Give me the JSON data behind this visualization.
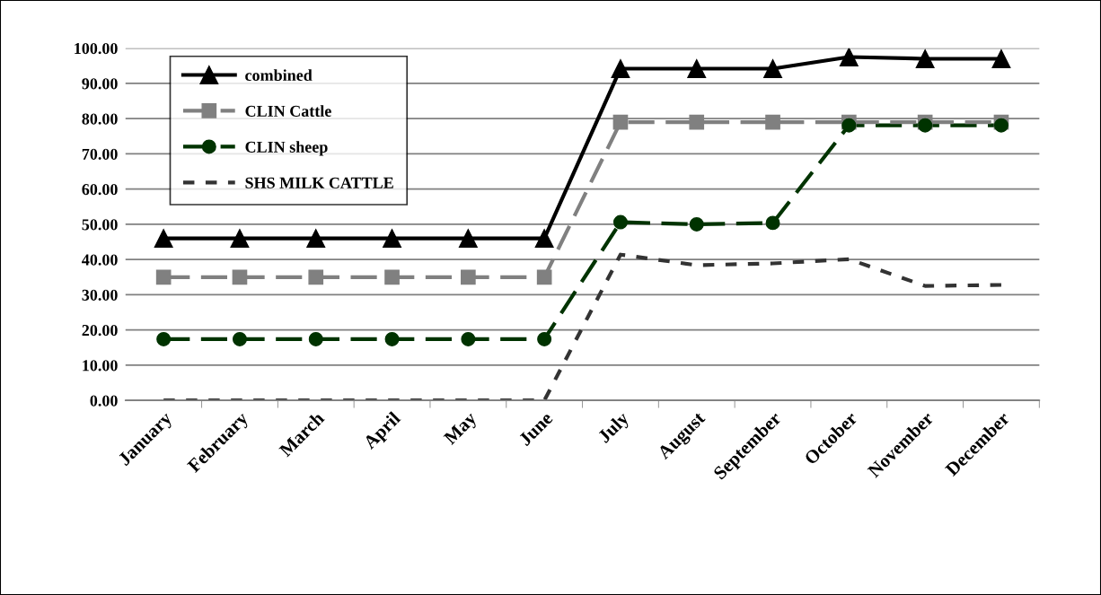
{
  "chart_data": {
    "type": "line",
    "categories": [
      "January",
      "February",
      "March",
      "April",
      "May",
      "June",
      "July",
      "August",
      "September",
      "October",
      "November",
      "December"
    ],
    "series": [
      {
        "name": "combined",
        "color": "#000000",
        "marker": "triangle",
        "line_style": "solid",
        "values": [
          46,
          46,
          46,
          46,
          46,
          46,
          94.2,
          94.2,
          94.2,
          97.5,
          97,
          97
        ]
      },
      {
        "name": "CLIN Cattle",
        "color": "#808080",
        "marker": "square",
        "line_style": "dashed",
        "values": [
          35,
          35,
          35,
          35,
          35,
          35,
          79,
          79,
          79,
          79,
          79,
          79
        ]
      },
      {
        "name": "CLIN sheep",
        "color": "#003300",
        "marker": "circle",
        "line_style": "dashed",
        "values": [
          17.4,
          17.4,
          17.4,
          17.4,
          17.4,
          17.4,
          50.6,
          50,
          50.4,
          78.1,
          78.1,
          78.1
        ]
      },
      {
        "name": "SHS MILK CATTLE",
        "color": "#333333",
        "marker": "none",
        "line_style": "dotted",
        "values": [
          0,
          0,
          0,
          0,
          0,
          0,
          41.4,
          38.4,
          38.9,
          40.1,
          32.5,
          32.8
        ]
      }
    ],
    "ylim": [
      0,
      100
    ],
    "yticks": [
      {
        "value": 0,
        "label": "0.00"
      },
      {
        "value": 10,
        "label": "10.00"
      },
      {
        "value": 20,
        "label": "20.00"
      },
      {
        "value": 30,
        "label": "30.00"
      },
      {
        "value": 40,
        "label": "40.00"
      },
      {
        "value": 50,
        "label": "50.00"
      },
      {
        "value": 60,
        "label": "60.00"
      },
      {
        "value": 70,
        "label": "70.00"
      },
      {
        "value": 80,
        "label": "80.00"
      },
      {
        "value": 90,
        "label": "90.00"
      },
      {
        "value": 100,
        "label": "100.00"
      }
    ],
    "grid": "y",
    "legend": "top left"
  }
}
